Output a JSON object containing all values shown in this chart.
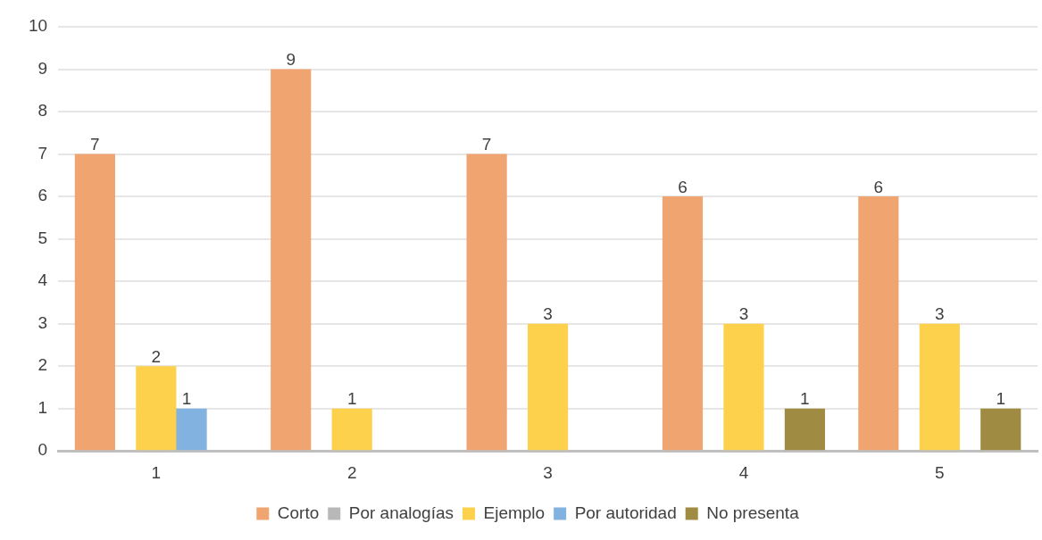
{
  "chart_data": {
    "type": "bar",
    "categories": [
      "1",
      "2",
      "3",
      "4",
      "5"
    ],
    "ylim": [
      0,
      10
    ],
    "yticks": [
      0,
      1,
      2,
      3,
      4,
      5,
      6,
      7,
      8,
      9,
      10
    ],
    "grid": "y",
    "legend": "bottom",
    "series": [
      {
        "name": "Corto",
        "color": "#f0a470",
        "values": [
          7,
          9,
          7,
          6,
          6
        ],
        "value_labels": [
          "7",
          "9",
          "7",
          "6",
          "6"
        ]
      },
      {
        "name": "Por analogías",
        "color": "#b8b8b8",
        "values": [
          0,
          0,
          0,
          0,
          0
        ],
        "value_labels": [
          null,
          null,
          null,
          null,
          null
        ]
      },
      {
        "name": "Ejemplo",
        "color": "#fdd14c",
        "values": [
          2,
          1,
          3,
          3,
          3
        ],
        "value_labels": [
          "2",
          "1",
          "3",
          "3",
          "3"
        ]
      },
      {
        "name": "Por autoridad",
        "color": "#82b2e0",
        "values": [
          1,
          0,
          0,
          0,
          0
        ],
        "value_labels": [
          "1",
          null,
          null,
          null,
          null
        ]
      },
      {
        "name": "No presenta",
        "color": "#a08b42",
        "values": [
          0,
          0,
          0,
          1,
          1
        ],
        "value_labels": [
          null,
          null,
          null,
          "1",
          "1"
        ]
      }
    ]
  }
}
